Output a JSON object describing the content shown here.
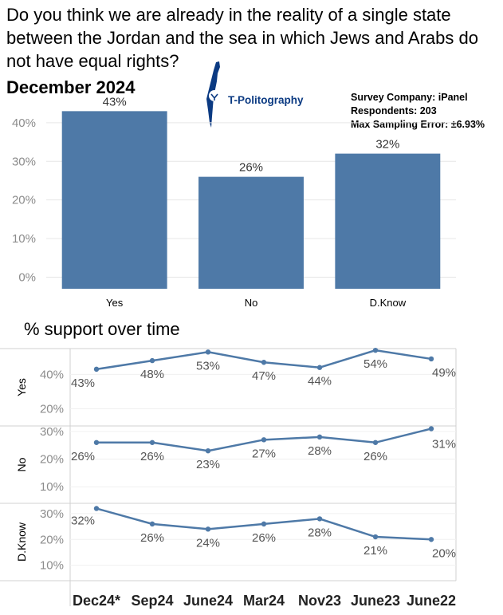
{
  "header": {
    "question": "Do you think we are already in the reality of a single state between the Jordan and the sea in which Jews and Arabs do not have equal rights?",
    "period": "December 2024"
  },
  "brand": {
    "name": "T-Politography",
    "color": "#0b3a82"
  },
  "survey_info": {
    "company": "Survey Company: iPanel",
    "respondents": "Respondents: 203",
    "error": "Max Sampling Error: ±6.93%"
  },
  "colors": {
    "bar": "#4e79a7",
    "line": "#4e79a7",
    "grid": "#e6e6e6",
    "tick": "#8c8c8c"
  },
  "section": {
    "title": "% support over time"
  },
  "chart_data": [
    {
      "type": "bar",
      "title": "",
      "categories": [
        "Yes",
        "No",
        "D.Know"
      ],
      "values": [
        43,
        26,
        32
      ],
      "value_labels": [
        "43%",
        "26%",
        "32%"
      ],
      "yticks": [
        0,
        10,
        20,
        30,
        40
      ],
      "ytick_labels": [
        "0%",
        "10%",
        "20%",
        "30%",
        "40%"
      ],
      "ylim": [
        -3,
        47
      ],
      "grid": true
    },
    {
      "type": "line",
      "title": "% support over time",
      "x": [
        "Dec24*",
        "Sep24",
        "June24",
        "Mar24",
        "Nov23",
        "June23",
        "June22"
      ],
      "series": [
        {
          "name": "Yes",
          "values": [
            43,
            48,
            53,
            47,
            44,
            54,
            49
          ],
          "labels": [
            "43%",
            "48%",
            "53%",
            "47%",
            "44%",
            "54%",
            "49%"
          ],
          "yticks": [
            20,
            40
          ],
          "ytick_labels": [
            "20%",
            "40%"
          ],
          "ylim": [
            10,
            55
          ]
        },
        {
          "name": "No",
          "values": [
            26,
            26,
            23,
            27,
            28,
            26,
            31
          ],
          "labels": [
            "26%",
            "26%",
            "23%",
            "27%",
            "28%",
            "26%",
            "31%"
          ],
          "yticks": [
            10,
            20,
            30
          ],
          "ytick_labels": [
            "10%",
            "20%",
            "30%"
          ],
          "ylim": [
            4,
            32
          ]
        },
        {
          "name": "D.Know",
          "values": [
            32,
            26,
            24,
            26,
            28,
            21,
            20
          ],
          "labels": [
            "32%",
            "26%",
            "24%",
            "26%",
            "28%",
            "21%",
            "20%"
          ],
          "yticks": [
            10,
            20,
            30
          ],
          "ytick_labels": [
            "10%",
            "20%",
            "30%"
          ],
          "ylim": [
            4,
            34
          ]
        }
      ],
      "grid": true
    }
  ]
}
